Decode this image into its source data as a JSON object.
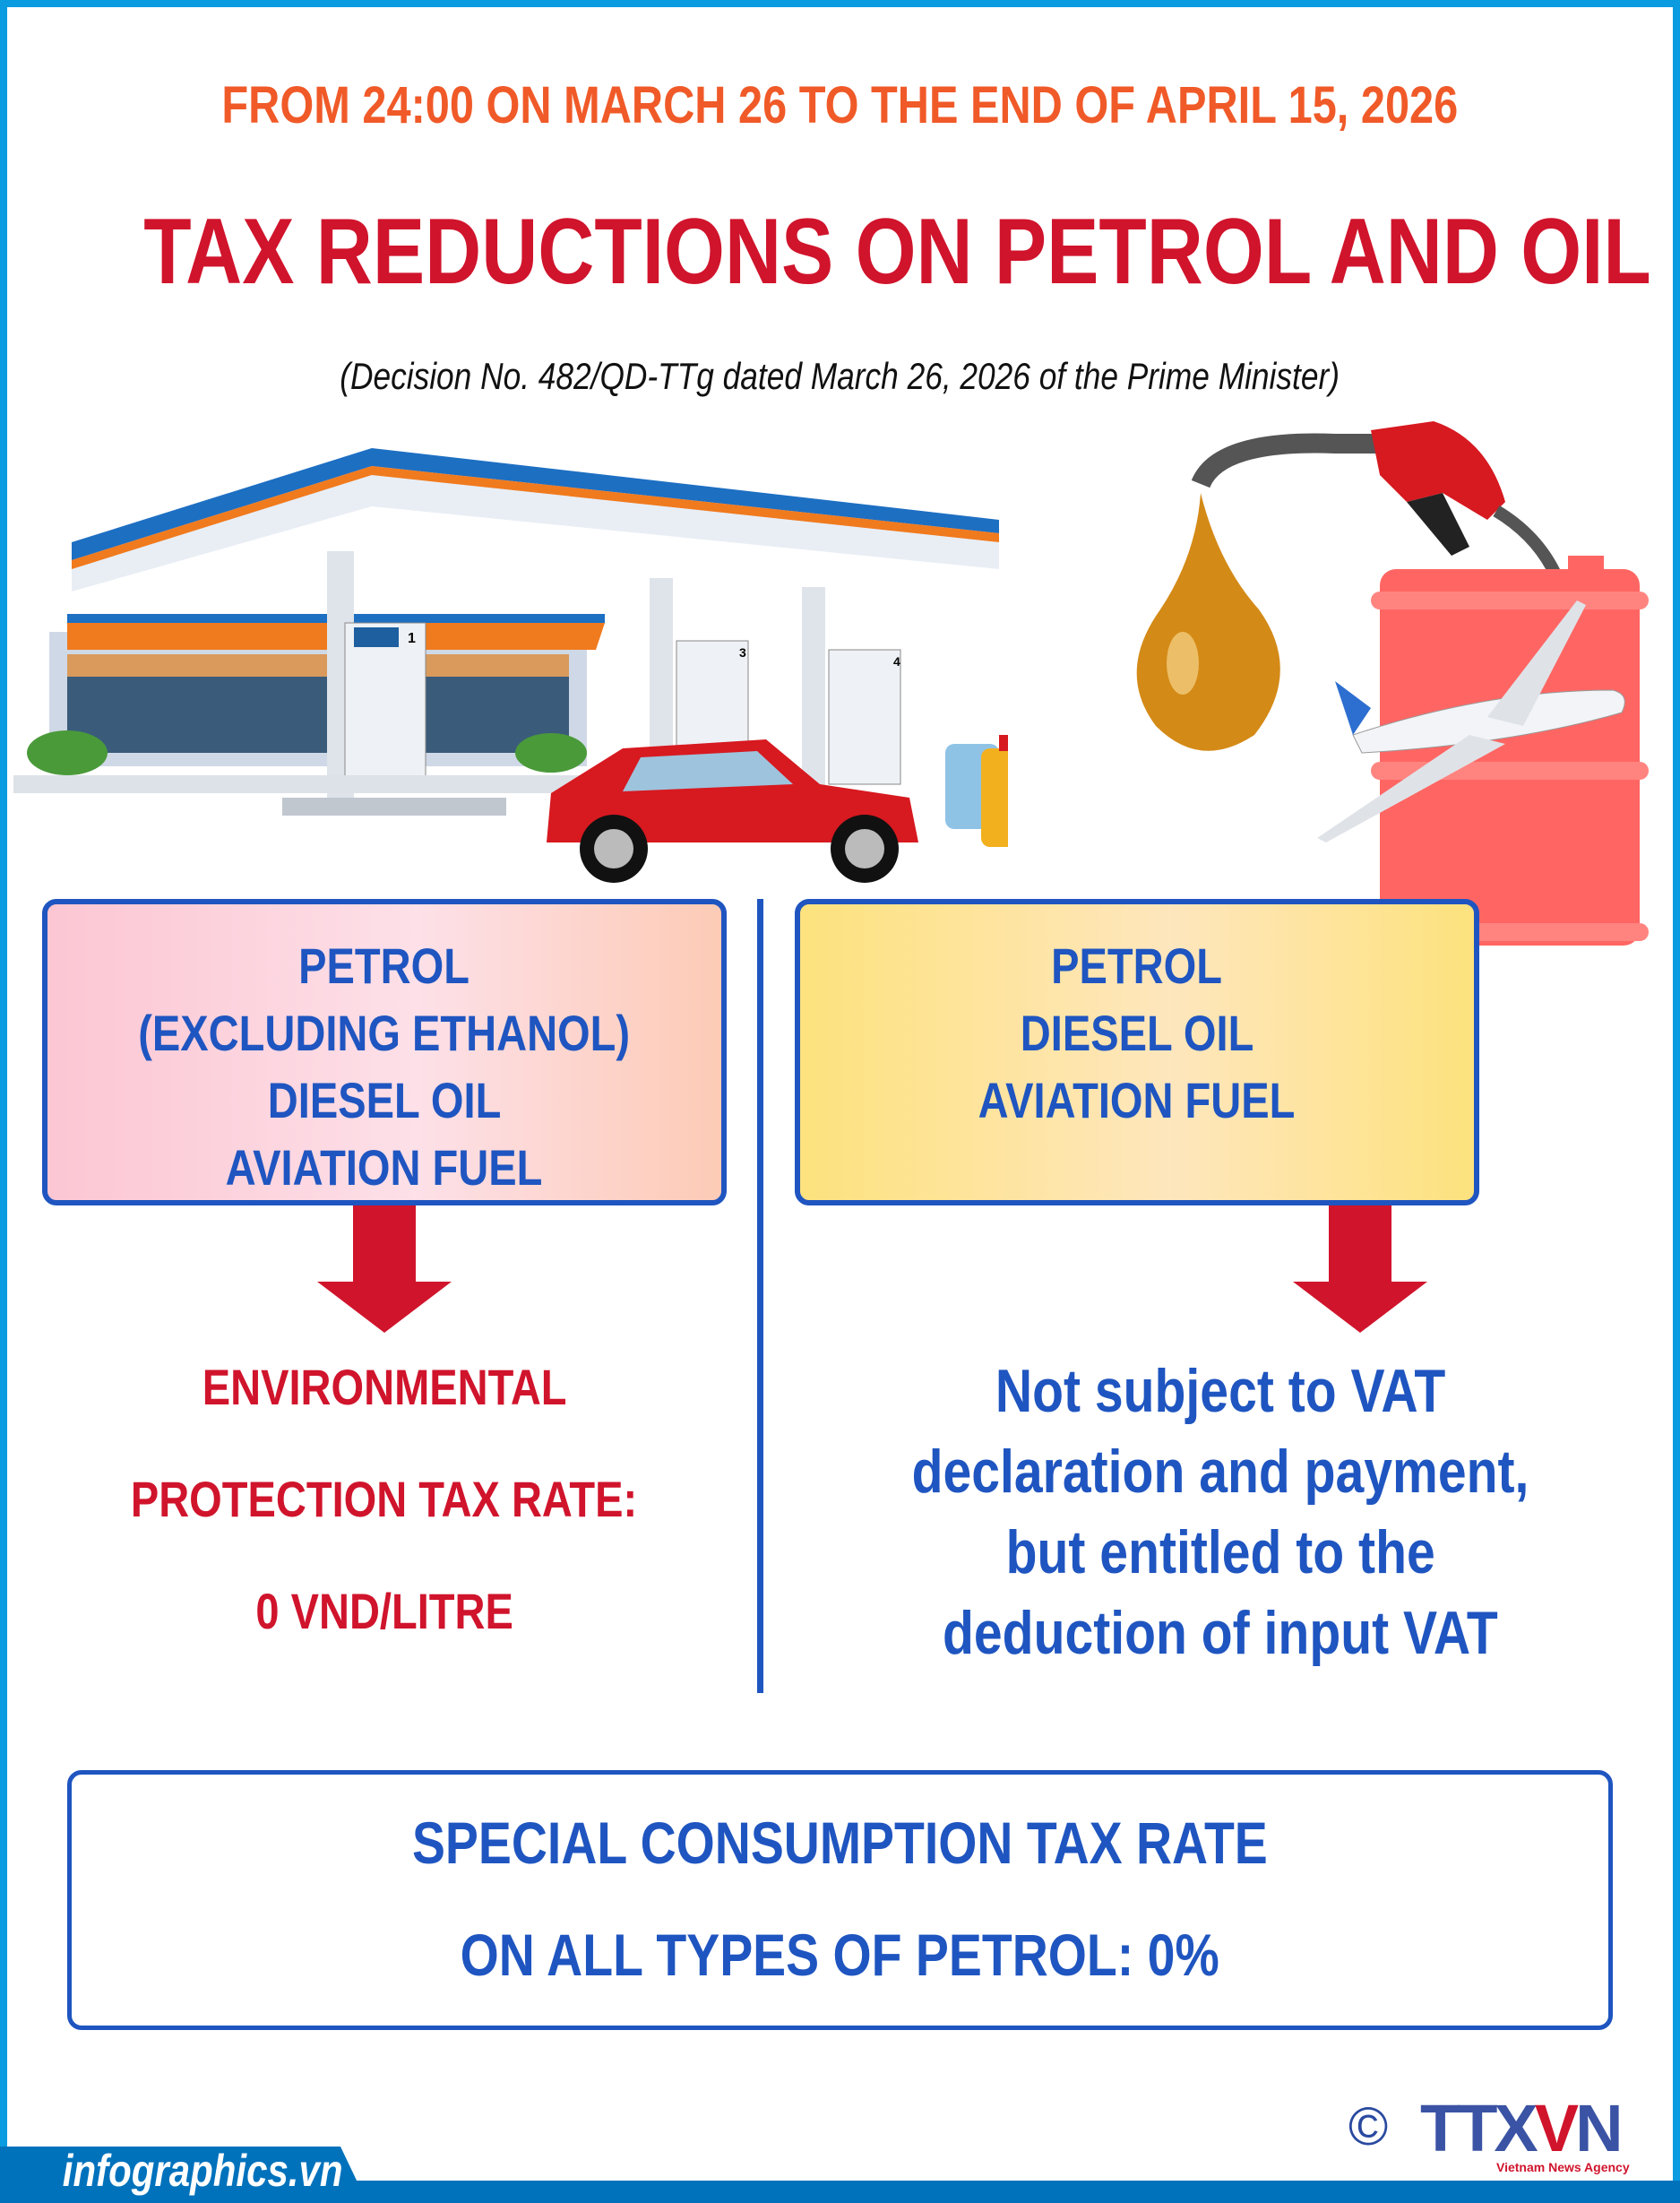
{
  "header": {
    "period": "FROM 24:00 ON MARCH 26 TO THE END OF APRIL 15, 2026",
    "title": "TAX REDUCTIONS ON PETROL AND OIL",
    "decision": "(Decision No. 482/QD-TTg dated March 26, 2026 of the Prime Minister)"
  },
  "illustration": {
    "pump_numbers": [
      "1",
      "3",
      "4"
    ],
    "icons": [
      "gas-station",
      "car",
      "jerry-cans",
      "oil-drop",
      "fuel-nozzle",
      "fuel-barrel",
      "airplane"
    ]
  },
  "left": {
    "items": [
      "PETROL",
      "(EXCLUDING ETHANOL)",
      "DIESEL OIL",
      "AVIATION FUEL"
    ],
    "result": [
      "ENVIRONMENTAL",
      "PROTECTION TAX RATE:",
      "0 VND/LITRE"
    ]
  },
  "right": {
    "items": [
      "PETROL",
      "DIESEL OIL",
      "AVIATION FUEL"
    ],
    "result": [
      "Not subject to VAT",
      "declaration and payment,",
      "but entitled to the",
      "deduction of input VAT"
    ]
  },
  "bottom": {
    "lines": [
      "SPECIAL CONSUMPTION TAX RATE",
      "ON ALL TYPES OF PETROL: 0%"
    ]
  },
  "footer": {
    "site": "infographics.vn",
    "copyright": "©",
    "logo": "TTXVN",
    "agency": "Vietnam News Agency"
  },
  "colors": {
    "orange": "#f05a28",
    "red": "#d0142c",
    "blue": "#1f55c0",
    "frame": "#0a9be0",
    "footer": "#0072bc"
  }
}
